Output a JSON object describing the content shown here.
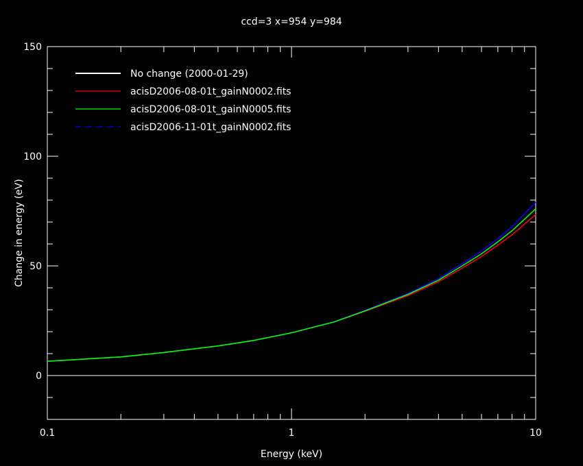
{
  "chart_data": {
    "type": "line",
    "title": "ccd=3 x=954 y=984",
    "xlabel": "Energy (keV)",
    "ylabel": "Change in energy (eV)",
    "xscale": "log",
    "xlim": [
      0.1,
      10
    ],
    "ylim": [
      -20,
      150
    ],
    "xticks": [
      {
        "v": 0.1,
        "label": "0.1"
      },
      {
        "v": 1,
        "label": "1"
      },
      {
        "v": 10,
        "label": "10"
      }
    ],
    "yticks": [
      {
        "v": 0,
        "label": "0"
      },
      {
        "v": 50,
        "label": "50"
      },
      {
        "v": 100,
        "label": "100"
      },
      {
        "v": 150,
        "label": "150"
      }
    ],
    "legend_position": "top-left",
    "x": [
      0.1,
      0.2,
      0.3,
      0.5,
      0.7,
      1,
      1.5,
      2,
      3,
      4,
      5,
      6,
      7,
      8,
      10
    ],
    "series": [
      {
        "name": "No change (2000-01-29)",
        "color": "#ffffff",
        "dash": false,
        "values": [
          0,
          0,
          0,
          0,
          0,
          0,
          0,
          0,
          0,
          0,
          0,
          0,
          0,
          0,
          0
        ]
      },
      {
        "name": "acisD2006-08-01t_gainN0002.fits",
        "color": "#ff0000",
        "dash": false,
        "values": [
          6.5,
          8.5,
          10.5,
          13.5,
          16,
          19.5,
          24.5,
          29.3,
          36.5,
          42.8,
          49,
          54.3,
          59.5,
          64.2,
          73.4
        ]
      },
      {
        "name": "acisD2006-08-01t_gainN0005.fits",
        "color": "#00ff00",
        "dash": false,
        "values": [
          6.5,
          8.5,
          10.5,
          13.5,
          16,
          19.5,
          24.5,
          29.5,
          37,
          43.5,
          50,
          55.5,
          61,
          66,
          76
        ]
      },
      {
        "name": "acisD2006-11-01t_gainN0002.fits",
        "color": "#0000ff",
        "dash": true,
        "values": [
          6.5,
          8.5,
          10.5,
          13.5,
          16,
          19.5,
          24.6,
          29.7,
          37.4,
          44.2,
          51,
          56.8,
          62.5,
          67.8,
          79
        ]
      }
    ]
  }
}
